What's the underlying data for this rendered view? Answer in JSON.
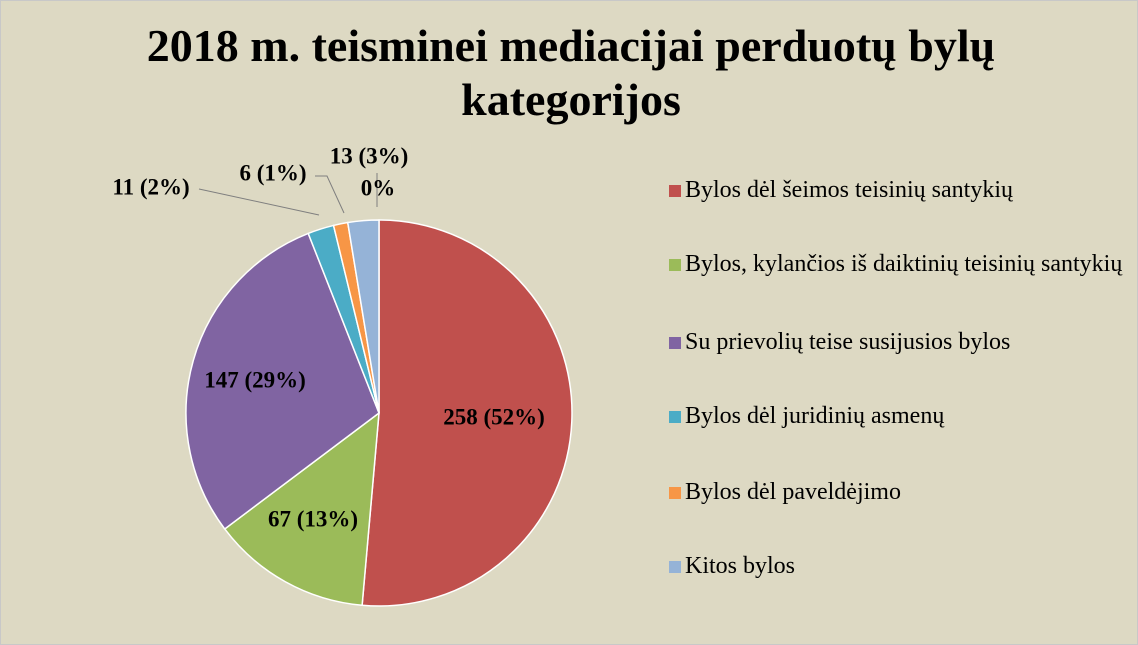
{
  "chart_data": {
    "type": "pie",
    "title": "2018 m. teisminei mediacijai perduotų bylų kategorijos",
    "categories": [
      "Bylos dėl šeimos teisinių santykių",
      "Bylos, kylančios iš daiktinių teisinių santykių",
      "Su prievolių teise susijusios bylos",
      "Bylos dėl juridinių asmenų",
      "Bylos dėl paveldėjimo",
      "Kitos bylos"
    ],
    "values": [
      258,
      67,
      147,
      11,
      6,
      13
    ],
    "value_labels": [
      "258 (52%)",
      "67 (13%)",
      "147 (29%)",
      "11 (2%)",
      "6 (1%)",
      "13 (3%)"
    ],
    "colors": [
      "#c0504d",
      "#9bbb59",
      "#8064a2",
      "#4bacc6",
      "#f79646",
      "#95b3d7"
    ],
    "annotations": [
      "0%"
    ],
    "legend": "right"
  }
}
